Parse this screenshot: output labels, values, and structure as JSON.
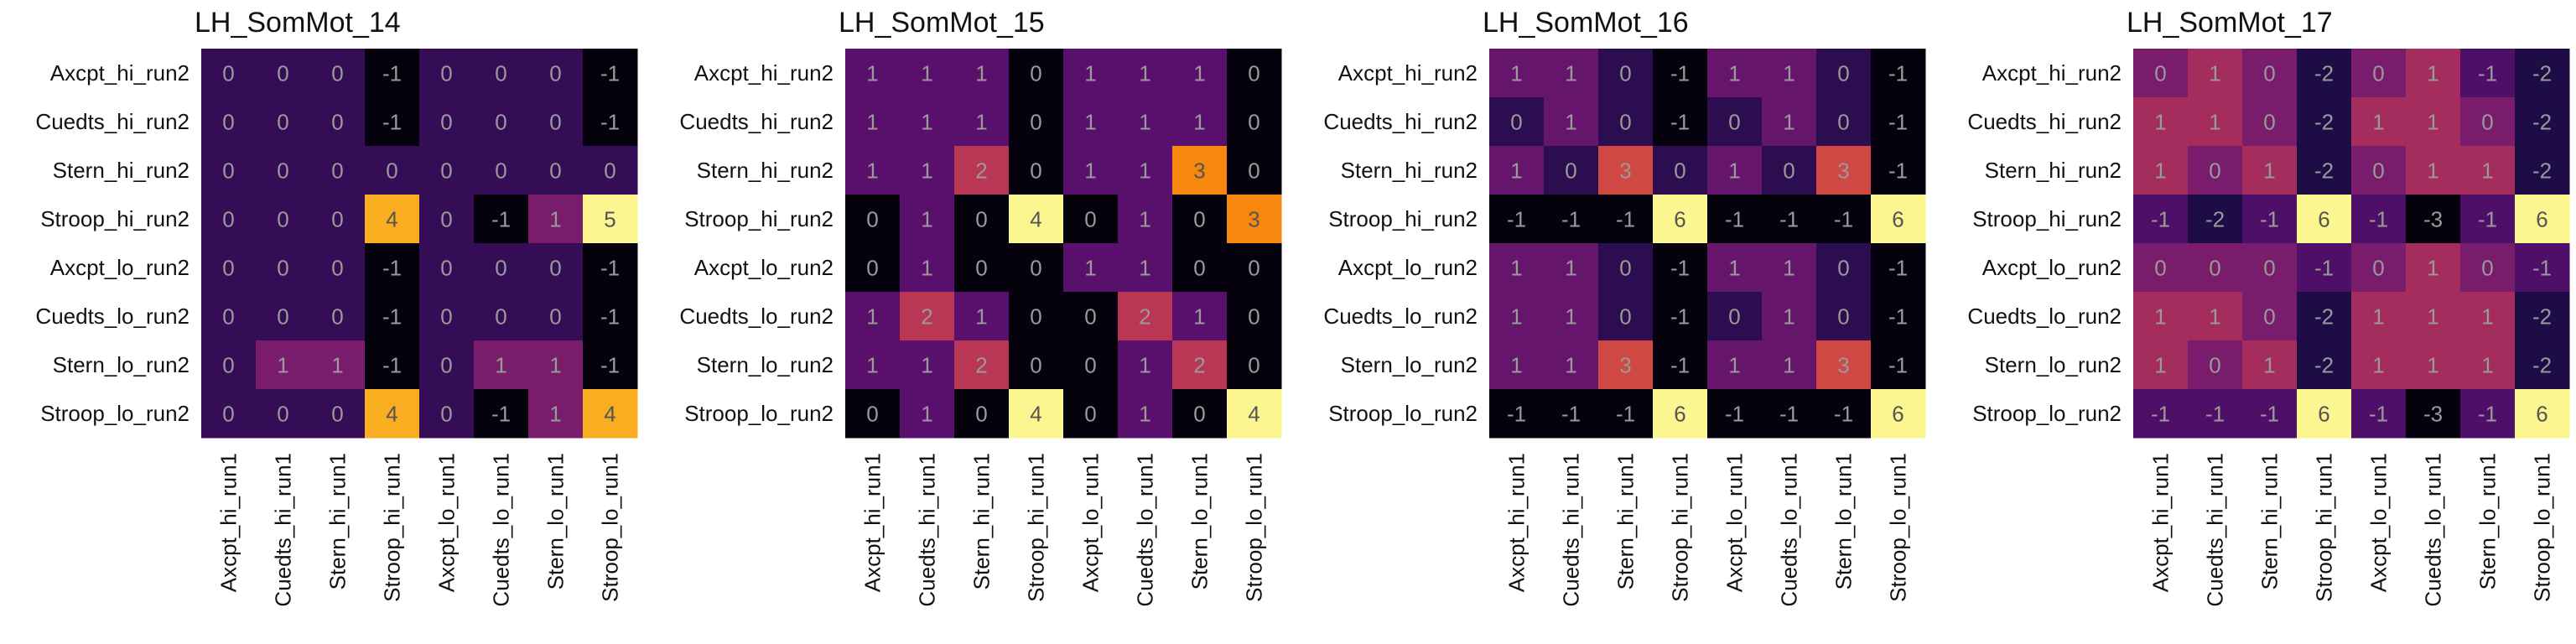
{
  "chart_data": [
    {
      "type": "heatmap",
      "title": "LH_SomMot_14",
      "rows": [
        "Axcpt_hi_run2",
        "Cuedts_hi_run2",
        "Stern_hi_run2",
        "Stroop_hi_run2",
        "Axcpt_lo_run2",
        "Cuedts_lo_run2",
        "Stern_lo_run2",
        "Stroop_lo_run2"
      ],
      "cols": [
        "Axcpt_hi_run1",
        "Cuedts_hi_run1",
        "Stern_hi_run1",
        "Stroop_hi_run1",
        "Axcpt_lo_run1",
        "Cuedts_lo_run1",
        "Stern_lo_run1",
        "Stroop_lo_run1"
      ],
      "values": [
        [
          0,
          0,
          0,
          -1,
          0,
          0,
          0,
          -1
        ],
        [
          0,
          0,
          0,
          -1,
          0,
          0,
          0,
          -1
        ],
        [
          0,
          0,
          0,
          0,
          0,
          0,
          0,
          0
        ],
        [
          0,
          0,
          0,
          4,
          0,
          -1,
          1,
          5
        ],
        [
          0,
          0,
          0,
          -1,
          0,
          0,
          0,
          -1
        ],
        [
          0,
          0,
          0,
          -1,
          0,
          0,
          0,
          -1
        ],
        [
          0,
          1,
          1,
          -1,
          0,
          1,
          1,
          -1
        ],
        [
          0,
          0,
          0,
          4,
          0,
          -1,
          1,
          4
        ]
      ],
      "vmin": -1,
      "vmax": 5
    },
    {
      "type": "heatmap",
      "title": "LH_SomMot_15",
      "rows": [
        "Axcpt_hi_run2",
        "Cuedts_hi_run2",
        "Stern_hi_run2",
        "Stroop_hi_run2",
        "Axcpt_lo_run2",
        "Cuedts_lo_run2",
        "Stern_lo_run2",
        "Stroop_lo_run2"
      ],
      "cols": [
        "Axcpt_hi_run1",
        "Cuedts_hi_run1",
        "Stern_hi_run1",
        "Stroop_hi_run1",
        "Axcpt_lo_run1",
        "Cuedts_lo_run1",
        "Stern_lo_run1",
        "Stroop_lo_run1"
      ],
      "values": [
        [
          1,
          1,
          1,
          0,
          1,
          1,
          1,
          0
        ],
        [
          1,
          1,
          1,
          0,
          1,
          1,
          1,
          0
        ],
        [
          1,
          1,
          2,
          0,
          1,
          1,
          3,
          0
        ],
        [
          0,
          1,
          0,
          4,
          0,
          1,
          0,
          3
        ],
        [
          0,
          1,
          0,
          0,
          1,
          1,
          0,
          0
        ],
        [
          1,
          2,
          1,
          0,
          0,
          2,
          1,
          0
        ],
        [
          1,
          1,
          2,
          0,
          0,
          1,
          2,
          0
        ],
        [
          0,
          1,
          0,
          4,
          0,
          1,
          0,
          4
        ]
      ],
      "vmin": 0,
      "vmax": 4
    },
    {
      "type": "heatmap",
      "title": "LH_SomMot_16",
      "rows": [
        "Axcpt_hi_run2",
        "Cuedts_hi_run2",
        "Stern_hi_run2",
        "Stroop_hi_run2",
        "Axcpt_lo_run2",
        "Cuedts_lo_run2",
        "Stern_lo_run2",
        "Stroop_lo_run2"
      ],
      "cols": [
        "Axcpt_hi_run1",
        "Cuedts_hi_run1",
        "Stern_hi_run1",
        "Stroop_hi_run1",
        "Axcpt_lo_run1",
        "Cuedts_lo_run1",
        "Stern_lo_run1",
        "Stroop_lo_run1"
      ],
      "values": [
        [
          1,
          1,
          0,
          -1,
          1,
          1,
          0,
          -1
        ],
        [
          0,
          1,
          0,
          -1,
          0,
          1,
          0,
          -1
        ],
        [
          1,
          0,
          3,
          0,
          1,
          0,
          3,
          -1
        ],
        [
          -1,
          -1,
          -1,
          6,
          -1,
          -1,
          -1,
          6
        ],
        [
          1,
          1,
          0,
          -1,
          1,
          1,
          0,
          -1
        ],
        [
          1,
          1,
          0,
          -1,
          0,
          1,
          0,
          -1
        ],
        [
          1,
          1,
          3,
          -1,
          1,
          1,
          3,
          -1
        ],
        [
          -1,
          -1,
          -1,
          6,
          -1,
          -1,
          -1,
          6
        ]
      ],
      "vmin": -1,
      "vmax": 6
    },
    {
      "type": "heatmap",
      "title": "LH_SomMot_17",
      "rows": [
        "Axcpt_hi_run2",
        "Cuedts_hi_run2",
        "Stern_hi_run2",
        "Stroop_hi_run2",
        "Axcpt_lo_run2",
        "Cuedts_lo_run2",
        "Stern_lo_run2",
        "Stroop_lo_run2"
      ],
      "cols": [
        "Axcpt_hi_run1",
        "Cuedts_hi_run1",
        "Stern_hi_run1",
        "Stroop_hi_run1",
        "Axcpt_lo_run1",
        "Cuedts_lo_run1",
        "Stern_lo_run1",
        "Stroop_lo_run1"
      ],
      "values": [
        [
          0,
          1,
          0,
          -2,
          0,
          1,
          -1,
          -2
        ],
        [
          1,
          1,
          0,
          -2,
          1,
          1,
          0,
          -2
        ],
        [
          1,
          0,
          1,
          -2,
          0,
          1,
          1,
          -2
        ],
        [
          -1,
          -2,
          -1,
          6,
          -1,
          -3,
          -1,
          6
        ],
        [
          0,
          0,
          0,
          -1,
          0,
          1,
          0,
          -1
        ],
        [
          1,
          1,
          0,
          -2,
          1,
          1,
          1,
          -2
        ],
        [
          1,
          0,
          1,
          -2,
          1,
          1,
          1,
          -2
        ],
        [
          -1,
          -1,
          -1,
          6,
          -1,
          -3,
          -1,
          6
        ]
      ],
      "vmin": -3,
      "vmax": 6
    }
  ]
}
